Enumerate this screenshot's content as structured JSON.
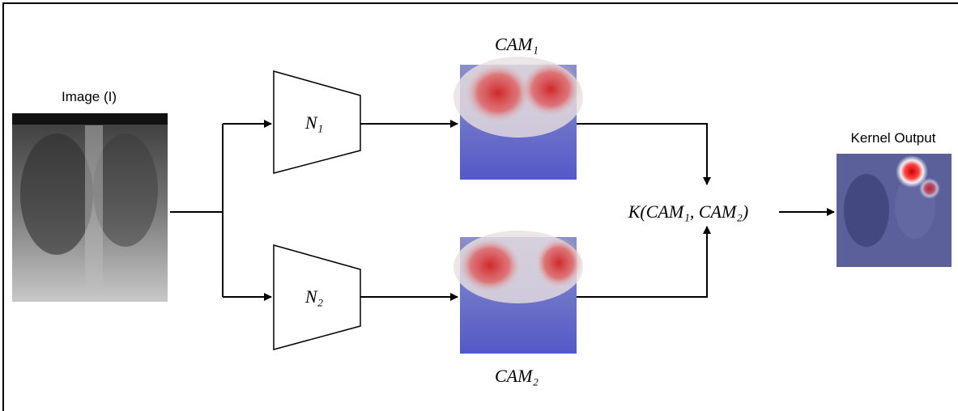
{
  "nodes": [
    {
      "id": "input",
      "label": "Image (I)"
    },
    {
      "id": "net1",
      "label": "N₁"
    },
    {
      "id": "net2",
      "label": "N₂"
    },
    {
      "id": "cam1",
      "label": "CAM₁"
    },
    {
      "id": "cam2",
      "label": "CAM₂"
    },
    {
      "id": "kernel",
      "label": "K(CAM₁, CAM₂)"
    },
    {
      "id": "output",
      "label": "Kernel Output"
    }
  ]
}
